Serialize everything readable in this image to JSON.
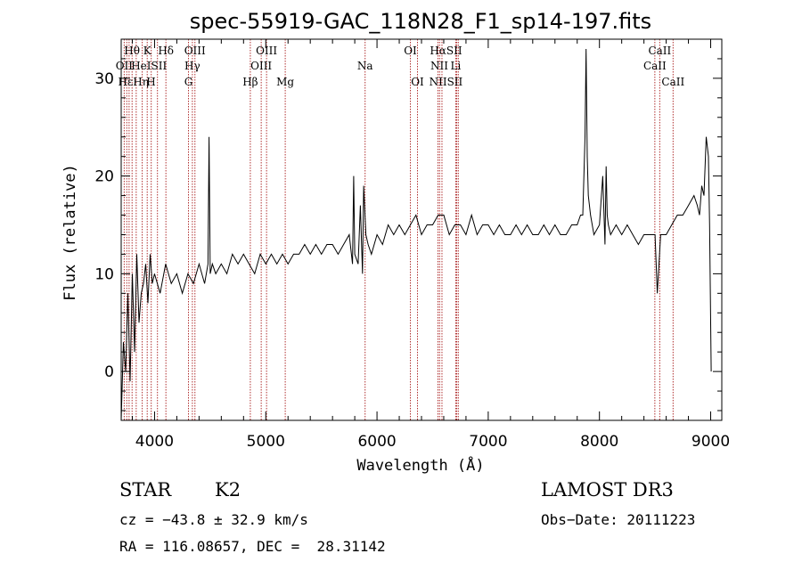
{
  "chart_data": {
    "type": "line",
    "title": "spec-55919-GAC_118N28_F1_sp14-197.fits",
    "xlabel": "Wavelength (Å)",
    "ylabel": "Flux (relative)",
    "xlim": [
      3700,
      9100
    ],
    "ylim": [
      -5,
      34
    ],
    "xticks": [
      4000,
      5000,
      6000,
      7000,
      8000,
      9000
    ],
    "yticks": [
      0,
      10,
      20,
      30
    ],
    "series": [
      {
        "name": "flux",
        "x": [
          3700,
          3720,
          3740,
          3760,
          3780,
          3800,
          3820,
          3840,
          3860,
          3880,
          3900,
          3920,
          3940,
          3960,
          3980,
          4000,
          4050,
          4100,
          4150,
          4200,
          4250,
          4300,
          4350,
          4400,
          4450,
          4480,
          4490,
          4500,
          4520,
          4550,
          4600,
          4650,
          4700,
          4750,
          4800,
          4850,
          4900,
          4950,
          5000,
          5050,
          5100,
          5150,
          5200,
          5250,
          5300,
          5350,
          5400,
          5450,
          5500,
          5550,
          5600,
          5650,
          5700,
          5750,
          5780,
          5790,
          5800,
          5830,
          5850,
          5870,
          5880,
          5900,
          5920,
          5950,
          6000,
          6050,
          6100,
          6150,
          6200,
          6250,
          6300,
          6350,
          6400,
          6450,
          6500,
          6550,
          6600,
          6650,
          6700,
          6750,
          6800,
          6850,
          6900,
          6950,
          7000,
          7050,
          7100,
          7150,
          7200,
          7250,
          7300,
          7350,
          7400,
          7450,
          7500,
          7550,
          7600,
          7650,
          7700,
          7750,
          7800,
          7830,
          7850,
          7870,
          7880,
          7890,
          7900,
          7920,
          7950,
          8000,
          8030,
          8050,
          8060,
          8070,
          8080,
          8100,
          8150,
          8200,
          8250,
          8300,
          8350,
          8400,
          8450,
          8500,
          8520,
          8550,
          8600,
          8650,
          8700,
          8750,
          8800,
          8850,
          8880,
          8900,
          8920,
          8940,
          8960,
          8980,
          8990,
          9000,
          9005
        ],
        "values": [
          -5,
          3,
          0,
          8,
          -1,
          10,
          2,
          12,
          5,
          8,
          9,
          11,
          7,
          12,
          9,
          10,
          8,
          11,
          9,
          10,
          8,
          10,
          9,
          11,
          9,
          11,
          24,
          10,
          11,
          10,
          11,
          10,
          12,
          11,
          12,
          11,
          10,
          12,
          11,
          12,
          11,
          12,
          11,
          12,
          12,
          13,
          12,
          13,
          12,
          13,
          13,
          12,
          13,
          14,
          11,
          20,
          12,
          11,
          17,
          10,
          19,
          14,
          13,
          12,
          14,
          13,
          15,
          14,
          15,
          14,
          15,
          16,
          14,
          15,
          15,
          16,
          16,
          14,
          15,
          15,
          14,
          16,
          14,
          15,
          15,
          14,
          15,
          14,
          14,
          15,
          14,
          15,
          14,
          14,
          15,
          14,
          15,
          14,
          14,
          15,
          15,
          16,
          16,
          24,
          33,
          22,
          18,
          16,
          14,
          15,
          20,
          13,
          21,
          16,
          15,
          14,
          15,
          14,
          15,
          14,
          13,
          14,
          14,
          14,
          8,
          14,
          14,
          15,
          16,
          16,
          17,
          18,
          17,
          16,
          19,
          18,
          24,
          22,
          15,
          5,
          0
        ]
      }
    ],
    "line_labels": [
      {
        "text": "Hθ",
        "x": 3797,
        "row": 0
      },
      {
        "text": "K",
        "x": 3934,
        "row": 0
      },
      {
        "text": "Hδ",
        "x": 4102,
        "row": 0
      },
      {
        "text": "OIII",
        "x": 4363,
        "row": 0
      },
      {
        "text": "OIII",
        "x": 5007,
        "row": 0
      },
      {
        "text": "OI",
        "x": 6300,
        "row": 0
      },
      {
        "text": "HαSII",
        "x": 6620,
        "row": 0
      },
      {
        "text": "CaII",
        "x": 8542,
        "row": 0
      },
      {
        "text": "OII",
        "x": 3727,
        "row": 1
      },
      {
        "text": "HeISII",
        "x": 3950,
        "row": 1
      },
      {
        "text": "Hγ",
        "x": 4340,
        "row": 1
      },
      {
        "text": "OIII",
        "x": 4959,
        "row": 1
      },
      {
        "text": "Na",
        "x": 5893,
        "row": 1
      },
      {
        "text": "NII",
        "x": 6560,
        "row": 1
      },
      {
        "text": "Li",
        "x": 6708,
        "row": 1
      },
      {
        "text": "CaII",
        "x": 8498,
        "row": 1
      },
      {
        "text": "HεHη",
        "x": 3810,
        "row": 2
      },
      {
        "text": "H",
        "x": 3968,
        "row": 2
      },
      {
        "text": "G",
        "x": 4305,
        "row": 2
      },
      {
        "text": "Hβ",
        "x": 4861,
        "row": 2
      },
      {
        "text": "Mg",
        "x": 5175,
        "row": 2
      },
      {
        "text": "OI",
        "x": 6364,
        "row": 2
      },
      {
        "text": "NIISII",
        "x": 6620,
        "row": 2
      },
      {
        "text": "CaII",
        "x": 8662,
        "row": 2
      }
    ],
    "line_positions": [
      3727,
      3750,
      3771,
      3798,
      3835,
      3889,
      3934,
      3970,
      4026,
      4102,
      4305,
      4340,
      4363,
      4861,
      4959,
      5007,
      5175,
      5893,
      6300,
      6364,
      6548,
      6563,
      6584,
      6708,
      6717,
      6731,
      8498,
      8542,
      8662
    ]
  },
  "info": {
    "object_type": "STAR",
    "subclass": "K2",
    "survey": "LAMOST DR3",
    "cz": "cz = −43.8 ± 32.9 km/s",
    "obs_date": "Obs−Date: 20111223",
    "coords": "RA = 116.08657, DEC =  28.31142"
  },
  "colors": {
    "spectrum": "#000000",
    "line_marker": "#b03030",
    "axis": "#000000"
  }
}
